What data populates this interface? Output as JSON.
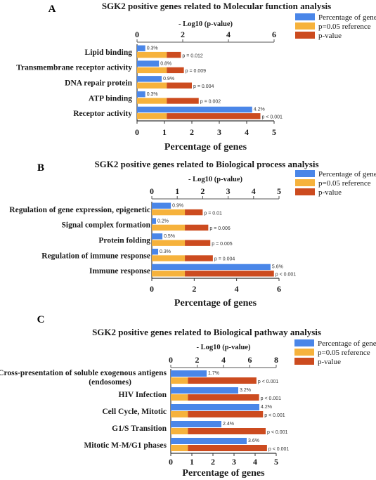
{
  "legend": {
    "items": [
      {
        "label": "Percentage of gene",
        "color": "#4a86e8"
      },
      {
        "label": "p=0.05 reference",
        "color": "#f6b23c"
      },
      {
        "label": "p-value",
        "color": "#cc4b1f"
      }
    ]
  },
  "chart_data": [
    {
      "type": "bar",
      "panel_label": "A",
      "title": "SGK2 positive genes related to Molecular function analysis",
      "xlabel": "Percentage of genes",
      "top_axis_label": "- Log10 (p-value)",
      "xlim": [
        0,
        5
      ],
      "top_xlim": [
        0,
        6
      ],
      "x_ticks": [
        0,
        1,
        2,
        3,
        4,
        5
      ],
      "top_ticks": [
        0,
        2,
        4,
        6
      ],
      "reference_neglog10": 1.3,
      "categories": [
        "Lipid binding",
        "Transmembrane receptor activity",
        "DNA repair protein",
        "ATP binding",
        "Receptor activity"
      ],
      "series": [
        {
          "name": "Percentage of gene",
          "values": [
            0.3,
            0.8,
            0.9,
            0.3,
            4.2
          ],
          "labels": [
            "0.3%",
            "0.8%",
            "0.9%",
            "0.3%",
            "4.2%"
          ]
        },
        {
          "name": "p=0.05 reference",
          "values": [
            1.3,
            1.3,
            1.3,
            1.3,
            1.3
          ]
        },
        {
          "name": "p-value",
          "values": [
            1.92,
            2.05,
            2.4,
            2.7,
            5.4
          ],
          "labels": [
            "p = 0.012",
            "p = 0.009",
            "p = 0.004",
            "p = 0.002",
            "p < 0.001"
          ]
        }
      ]
    },
    {
      "type": "bar",
      "panel_label": "B",
      "title": "SGK2 positive genes related to Biological process analysis",
      "xlabel": "Percentage of genes",
      "top_axis_label": "- Log10 (p-value)",
      "xlim": [
        0,
        6
      ],
      "top_xlim": [
        0,
        5
      ],
      "x_ticks": [
        0,
        2,
        4,
        6
      ],
      "top_ticks": [
        0,
        1,
        2,
        3,
        4,
        5
      ],
      "top_tick_labels": [
        "0",
        "1",
        "2",
        "3",
        "4",
        "5"
      ],
      "reference_neglog10": 1.3,
      "categories": [
        "Regulation of gene expression, epigenetic",
        "Signal complex formation",
        "Protein folding",
        "Regulation of immune response",
        "Immune response"
      ],
      "series": [
        {
          "name": "Percentage of gene",
          "values": [
            0.9,
            0.2,
            0.5,
            0.3,
            5.6
          ],
          "labels": [
            "0.9%",
            "0.2%",
            "0.5%",
            "0.3%",
            "5.6%"
          ]
        },
        {
          "name": "p=0.05 reference",
          "values": [
            1.3,
            1.3,
            1.3,
            1.3,
            1.3
          ]
        },
        {
          "name": "p-value",
          "values": [
            2.0,
            2.22,
            2.3,
            2.4,
            4.8
          ],
          "labels": [
            "p = 0.01",
            "p = 0.006",
            "p = 0.005",
            "p = 0.004",
            "p < 0.001"
          ]
        }
      ]
    },
    {
      "type": "bar",
      "panel_label": "C",
      "title": "SGK2 positive genes related to Biological pathway analysis",
      "xlabel": "Percentage of genes",
      "top_axis_label": "- Log10 (p-value)",
      "xlim": [
        0,
        5
      ],
      "top_xlim": [
        0,
        8
      ],
      "x_ticks": [
        0,
        1,
        2,
        3,
        4,
        5
      ],
      "top_ticks": [
        0,
        2,
        4,
        6,
        8
      ],
      "reference_neglog10": 1.3,
      "categories": [
        "Cross-presentation of soluble exogenous antigens (endosomes)",
        "HIV Infection",
        "Cell Cycle, Mitotic",
        "G1/S Transition",
        "Mitotic M-M/G1 phases"
      ],
      "category_lines": [
        [
          "Cross-presentation of soluble exogenous antigens",
          "(endosomes)"
        ],
        [
          "HIV Infection"
        ],
        [
          "Cell Cycle, Mitotic"
        ],
        [
          "G1/S Transition"
        ],
        [
          "Mitotic M-M/G1 phases"
        ]
      ],
      "series": [
        {
          "name": "Percentage of gene",
          "values": [
            1.7,
            3.2,
            4.2,
            2.4,
            3.6
          ],
          "labels": [
            "1.7%",
            "3.2%",
            "4.2%",
            "2.4%",
            "3.6%"
          ]
        },
        {
          "name": "p=0.05 reference",
          "values": [
            1.3,
            1.3,
            1.3,
            1.3,
            1.3
          ]
        },
        {
          "name": "p-value",
          "values": [
            6.5,
            6.7,
            7.0,
            7.2,
            7.3
          ],
          "labels": [
            "p < 0.001",
            "p < 0.001",
            "p < 0.001",
            "p < 0.001",
            "p < 0.001"
          ]
        }
      ]
    }
  ]
}
